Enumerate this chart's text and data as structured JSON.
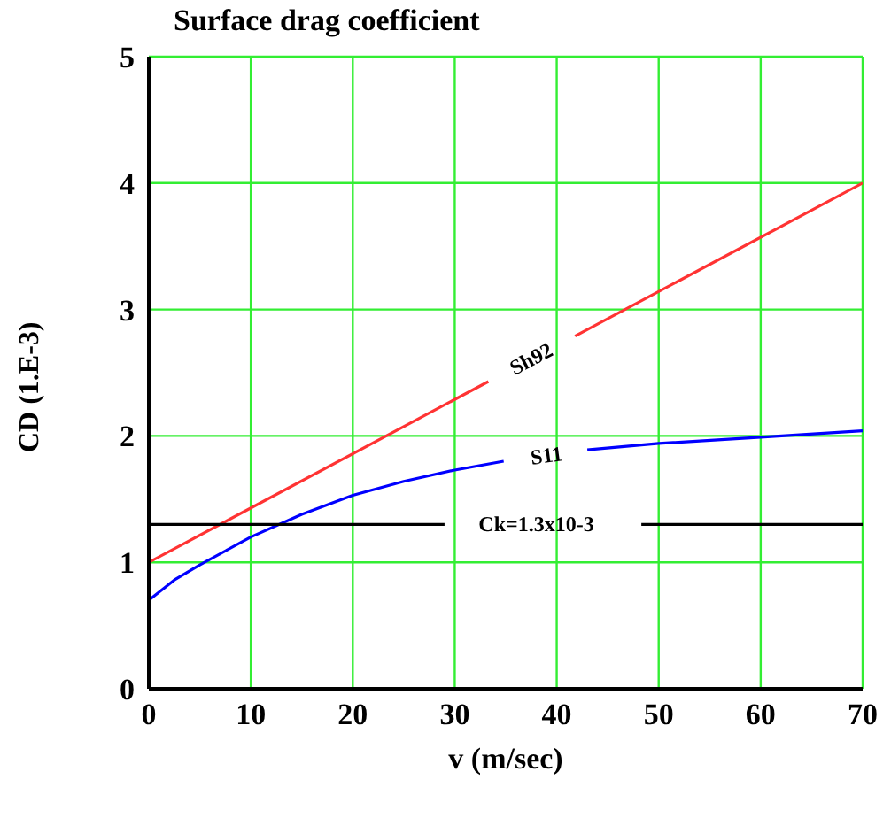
{
  "chart_data": {
    "type": "line",
    "title": "Surface drag coefficient",
    "xlabel": "v (m/sec)",
    "ylabel": "CD (1.E-3)",
    "xlim": [
      0,
      70
    ],
    "xticks": [
      0,
      10,
      20,
      30,
      40,
      50,
      60,
      70
    ],
    "ylim": [
      0,
      5
    ],
    "yticks": [
      0,
      1,
      2,
      3,
      4,
      5
    ],
    "grid": true,
    "series": [
      {
        "name": "Sh92",
        "color": "#ff3333",
        "x": [
          0,
          33.3,
          37.5,
          41.8,
          70
        ],
        "values": [
          1.0,
          2.43,
          null,
          2.79,
          4.0
        ]
      },
      {
        "name": "S11",
        "color": "#0000ff",
        "x": [
          0,
          2.5,
          5,
          10,
          15,
          20,
          25,
          30,
          34.8,
          39,
          43,
          50,
          60,
          70
        ],
        "values": [
          0.7,
          0.86,
          0.98,
          1.2,
          1.38,
          1.53,
          1.64,
          1.73,
          1.8,
          null,
          1.89,
          1.94,
          1.99,
          2.04
        ]
      },
      {
        "name": "Ck=1.3x10-3",
        "color": "#000000",
        "x": [
          0,
          29,
          38,
          48.3,
          70
        ],
        "values": [
          1.3,
          1.3,
          null,
          1.3,
          1.3
        ]
      }
    ]
  }
}
